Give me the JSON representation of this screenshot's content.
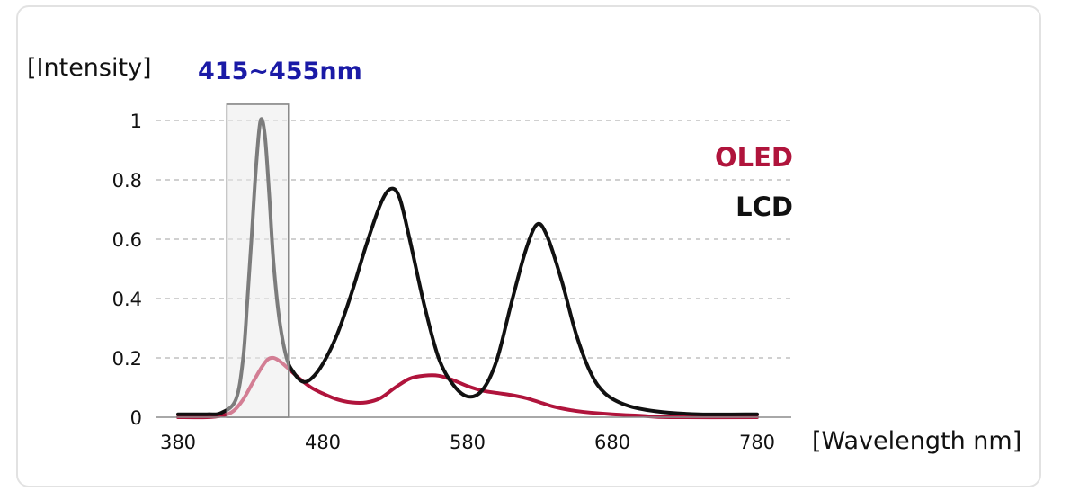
{
  "chart_data": {
    "type": "line",
    "title": "",
    "ylabel": "[Intensity]",
    "xlabel": "[Wavelength nm]",
    "xlim": [
      380,
      780
    ],
    "ylim": [
      0,
      1
    ],
    "x_ticks": [
      380,
      480,
      580,
      680,
      780
    ],
    "y_ticks": [
      0,
      0.2,
      0.4,
      0.6,
      0.8,
      1
    ],
    "y_tick_labels": [
      "0",
      "0.2",
      "0.4",
      "0.6",
      "0.8",
      "1"
    ],
    "grid": "horizontal-dashed",
    "highlight_band": {
      "label": "415~455nm",
      "x_range": [
        415,
        455
      ],
      "label_color": "#1a1aa6"
    },
    "legend_position": "top-right",
    "series": [
      {
        "name": "OLED",
        "color": "#b0143c",
        "points": [
          [
            380,
            0
          ],
          [
            400,
            0
          ],
          [
            410,
            0.005
          ],
          [
            418,
            0.02
          ],
          [
            425,
            0.06
          ],
          [
            432,
            0.12
          ],
          [
            438,
            0.17
          ],
          [
            442,
            0.195
          ],
          [
            446,
            0.2
          ],
          [
            450,
            0.19
          ],
          [
            456,
            0.165
          ],
          [
            464,
            0.13
          ],
          [
            472,
            0.1
          ],
          [
            480,
            0.08
          ],
          [
            490,
            0.06
          ],
          [
            500,
            0.05
          ],
          [
            510,
            0.05
          ],
          [
            520,
            0.065
          ],
          [
            530,
            0.1
          ],
          [
            540,
            0.13
          ],
          [
            550,
            0.14
          ],
          [
            560,
            0.14
          ],
          [
            570,
            0.125
          ],
          [
            580,
            0.105
          ],
          [
            590,
            0.09
          ],
          [
            600,
            0.082
          ],
          [
            610,
            0.075
          ],
          [
            620,
            0.065
          ],
          [
            630,
            0.05
          ],
          [
            640,
            0.035
          ],
          [
            650,
            0.025
          ],
          [
            660,
            0.018
          ],
          [
            680,
            0.01
          ],
          [
            700,
            0.005
          ],
          [
            720,
            0
          ],
          [
            780,
            0
          ]
        ]
      },
      {
        "name": "LCD",
        "color": "#111111",
        "points": [
          [
            380,
            0.01
          ],
          [
            400,
            0.01
          ],
          [
            410,
            0.015
          ],
          [
            420,
            0.06
          ],
          [
            425,
            0.2
          ],
          [
            428,
            0.4
          ],
          [
            431,
            0.62
          ],
          [
            434,
            0.85
          ],
          [
            437,
            1.0
          ],
          [
            440,
            0.95
          ],
          [
            443,
            0.75
          ],
          [
            446,
            0.52
          ],
          [
            450,
            0.33
          ],
          [
            455,
            0.2
          ],
          [
            460,
            0.15
          ],
          [
            466,
            0.12
          ],
          [
            472,
            0.13
          ],
          [
            480,
            0.18
          ],
          [
            490,
            0.28
          ],
          [
            500,
            0.42
          ],
          [
            510,
            0.58
          ],
          [
            520,
            0.72
          ],
          [
            527,
            0.77
          ],
          [
            533,
            0.74
          ],
          [
            540,
            0.6
          ],
          [
            550,
            0.38
          ],
          [
            560,
            0.2
          ],
          [
            570,
            0.11
          ],
          [
            580,
            0.07
          ],
          [
            590,
            0.09
          ],
          [
            600,
            0.19
          ],
          [
            610,
            0.38
          ],
          [
            620,
            0.56
          ],
          [
            628,
            0.65
          ],
          [
            635,
            0.61
          ],
          [
            645,
            0.46
          ],
          [
            655,
            0.28
          ],
          [
            665,
            0.15
          ],
          [
            675,
            0.08
          ],
          [
            690,
            0.04
          ],
          [
            710,
            0.02
          ],
          [
            740,
            0.01
          ],
          [
            780,
            0.01
          ]
        ]
      }
    ]
  }
}
